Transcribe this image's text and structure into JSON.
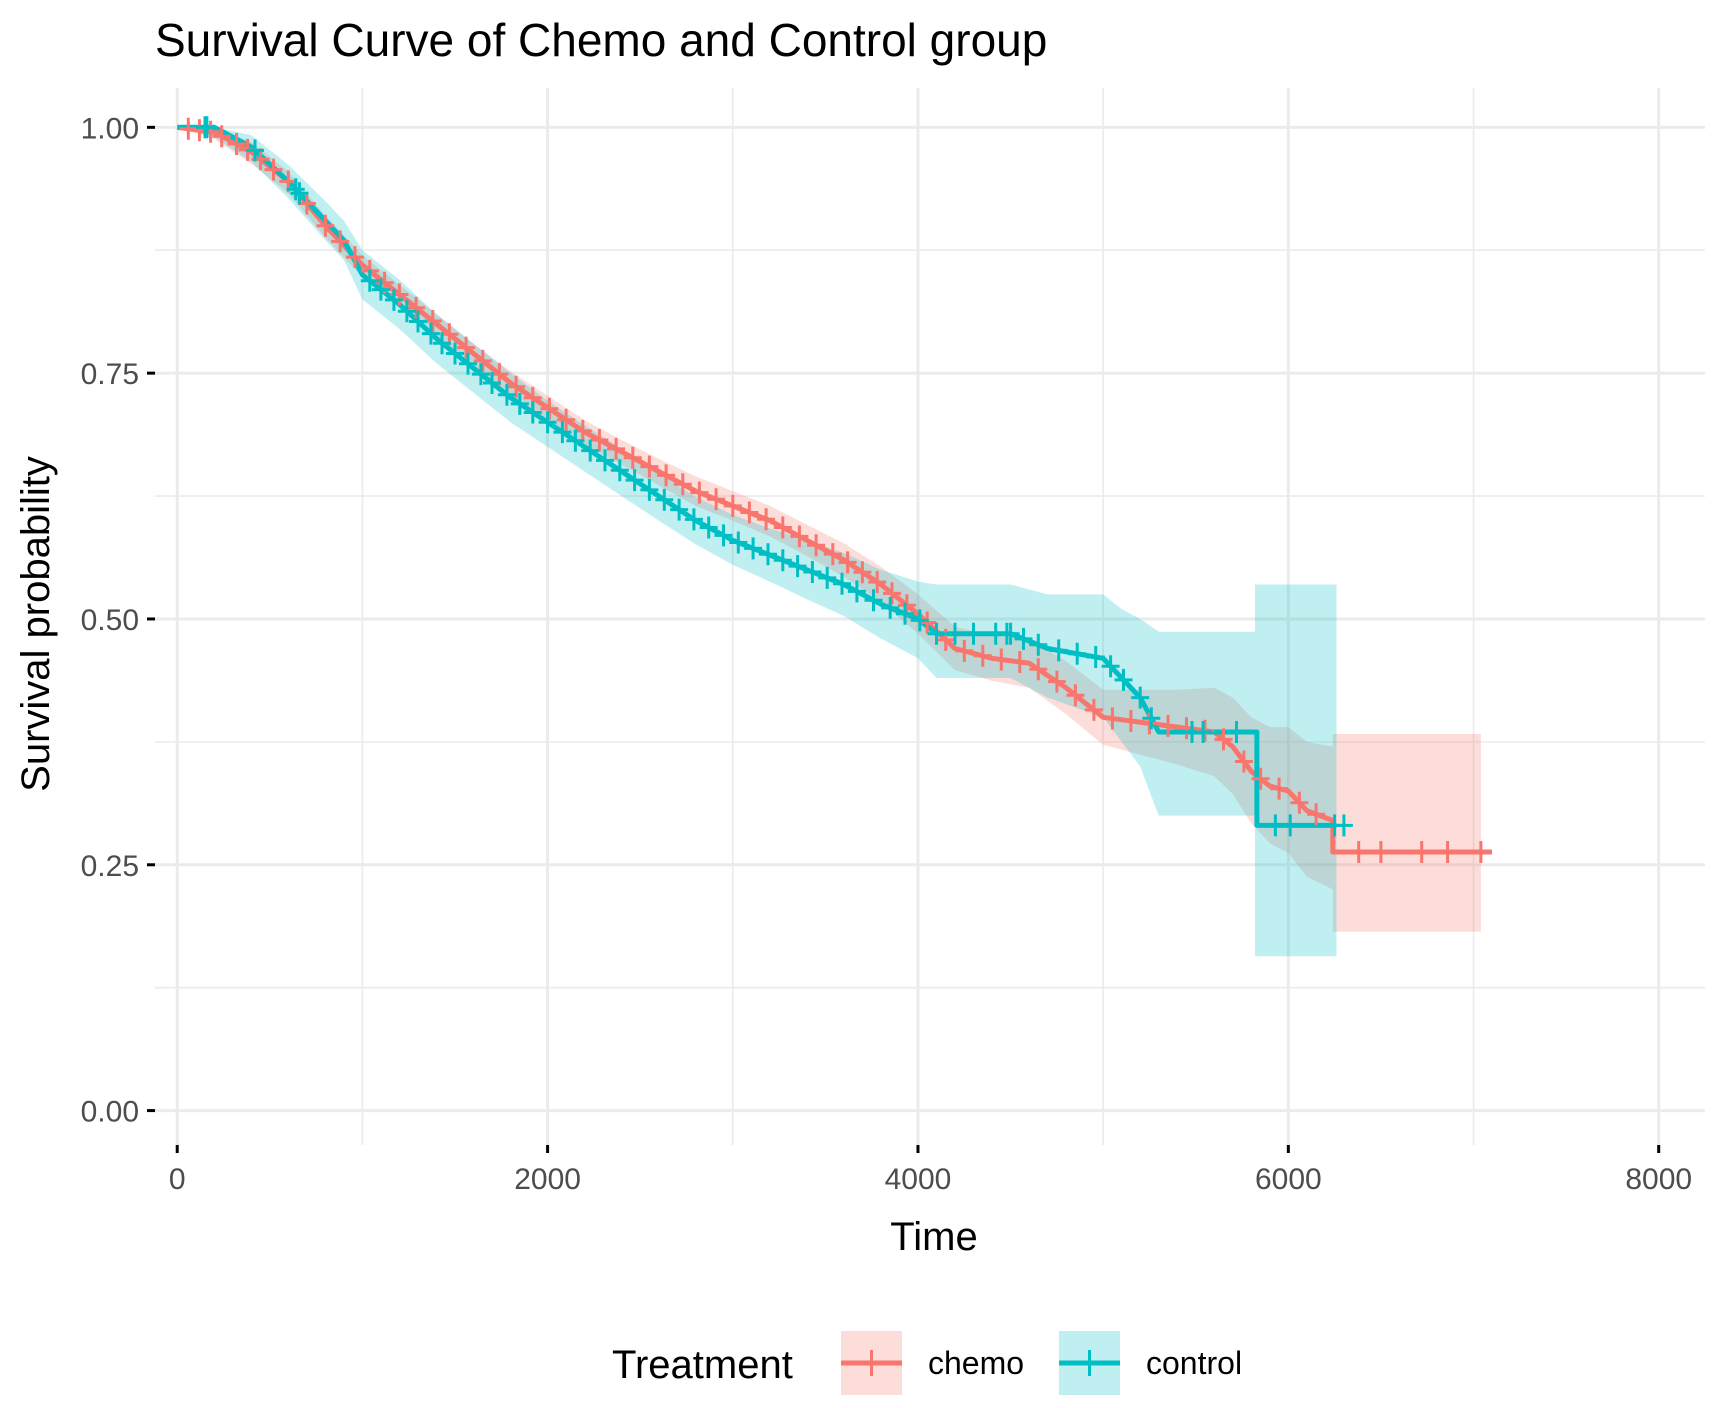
{
  "chart_data": {
    "type": "line",
    "subtype": "kaplan-meier survival curve with confidence bands",
    "title": "Survival Curve of Chemo and Control group",
    "xlabel": "Time",
    "ylabel": "Survival probability",
    "xlim": [
      -120,
      8250
    ],
    "ylim": [
      -0.035,
      1.04
    ],
    "x_ticks": [
      0,
      2000,
      4000,
      6000,
      8000
    ],
    "x_tick_labels": [
      "0",
      "2000",
      "4000",
      "6000",
      "8000"
    ],
    "y_ticks": [
      0,
      0.25,
      0.5,
      0.75,
      1.0
    ],
    "y_tick_labels": [
      "0.00",
      "0.25",
      "0.50",
      "0.75",
      "1.00"
    ],
    "grid": true,
    "legend": {
      "title": "Treatment",
      "position": "bottom"
    },
    "series": [
      {
        "name": "chemo",
        "color": "#F8766D",
        "band_color": "#F8766D",
        "points": [
          [
            0,
            1.0
          ],
          [
            200,
            0.995
          ],
          [
            400,
            0.975
          ],
          [
            600,
            0.945
          ],
          [
            800,
            0.9
          ],
          [
            1000,
            0.86
          ],
          [
            1200,
            0.83
          ],
          [
            1400,
            0.8
          ],
          [
            1600,
            0.77
          ],
          [
            1800,
            0.74
          ],
          [
            2000,
            0.715
          ],
          [
            2200,
            0.69
          ],
          [
            2400,
            0.67
          ],
          [
            2600,
            0.65
          ],
          [
            2800,
            0.63
          ],
          [
            3000,
            0.615
          ],
          [
            3200,
            0.6
          ],
          [
            3400,
            0.58
          ],
          [
            3600,
            0.56
          ],
          [
            3800,
            0.535
          ],
          [
            4000,
            0.505
          ],
          [
            4200,
            0.47
          ],
          [
            4400,
            0.46
          ],
          [
            4600,
            0.455
          ],
          [
            4800,
            0.43
          ],
          [
            5000,
            0.4
          ],
          [
            5200,
            0.395
          ],
          [
            5400,
            0.39
          ],
          [
            5600,
            0.385
          ],
          [
            5700,
            0.37
          ],
          [
            5800,
            0.345
          ],
          [
            5900,
            0.33
          ],
          [
            6000,
            0.325
          ],
          [
            6100,
            0.305
          ],
          [
            6240,
            0.295
          ],
          [
            6240,
            0.263
          ],
          [
            7100,
            0.263
          ]
        ],
        "upper": [
          [
            0,
            1.0
          ],
          [
            200,
            1.0
          ],
          [
            400,
            0.985
          ],
          [
            600,
            0.955
          ],
          [
            800,
            0.91
          ],
          [
            1000,
            0.87
          ],
          [
            1200,
            0.84
          ],
          [
            1400,
            0.81
          ],
          [
            1600,
            0.78
          ],
          [
            1800,
            0.752
          ],
          [
            2000,
            0.727
          ],
          [
            2200,
            0.702
          ],
          [
            2400,
            0.682
          ],
          [
            2600,
            0.663
          ],
          [
            2800,
            0.645
          ],
          [
            3000,
            0.63
          ],
          [
            3200,
            0.615
          ],
          [
            3400,
            0.596
          ],
          [
            3600,
            0.577
          ],
          [
            3800,
            0.553
          ],
          [
            4000,
            0.525
          ],
          [
            4200,
            0.492
          ],
          [
            4400,
            0.483
          ],
          [
            4600,
            0.48
          ],
          [
            4800,
            0.457
          ],
          [
            5000,
            0.428
          ],
          [
            5200,
            0.428
          ],
          [
            5400,
            0.428
          ],
          [
            5600,
            0.43
          ],
          [
            5700,
            0.42
          ],
          [
            5800,
            0.4
          ],
          [
            5900,
            0.39
          ],
          [
            6000,
            0.39
          ],
          [
            6100,
            0.375
          ],
          [
            6240,
            0.37
          ],
          [
            6240,
            0.383
          ],
          [
            7040,
            0.383
          ]
        ],
        "lower": [
          [
            0,
            1.0
          ],
          [
            200,
            0.988
          ],
          [
            400,
            0.963
          ],
          [
            600,
            0.933
          ],
          [
            800,
            0.888
          ],
          [
            1000,
            0.848
          ],
          [
            1200,
            0.818
          ],
          [
            1400,
            0.788
          ],
          [
            1600,
            0.758
          ],
          [
            1800,
            0.727
          ],
          [
            2000,
            0.702
          ],
          [
            2200,
            0.677
          ],
          [
            2400,
            0.657
          ],
          [
            2600,
            0.636
          ],
          [
            2800,
            0.615
          ],
          [
            3000,
            0.6
          ],
          [
            3200,
            0.584
          ],
          [
            3400,
            0.564
          ],
          [
            3600,
            0.543
          ],
          [
            3800,
            0.517
          ],
          [
            4000,
            0.485
          ],
          [
            4200,
            0.448
          ],
          [
            4400,
            0.437
          ],
          [
            4600,
            0.43
          ],
          [
            4800,
            0.403
          ],
          [
            5000,
            0.372
          ],
          [
            5200,
            0.362
          ],
          [
            5400,
            0.352
          ],
          [
            5600,
            0.34
          ],
          [
            5700,
            0.322
          ],
          [
            5800,
            0.292
          ],
          [
            5900,
            0.272
          ],
          [
            6000,
            0.262
          ],
          [
            6100,
            0.238
          ],
          [
            6240,
            0.225
          ],
          [
            6240,
            0.182
          ],
          [
            7040,
            0.182
          ]
        ],
        "censor_times": [
          60,
          120,
          180,
          240,
          320,
          380,
          450,
          520,
          600,
          700,
          800,
          880,
          960,
          1040,
          1120,
          1200,
          1290,
          1380,
          1470,
          1560,
          1650,
          1740,
          1830,
          1920,
          2010,
          2100,
          2190,
          2280,
          2370,
          2460,
          2550,
          2640,
          2730,
          2820,
          2910,
          3000,
          3090,
          3180,
          3270,
          3360,
          3450,
          3540,
          3620,
          3700,
          3780,
          3860,
          3940,
          4050,
          4150,
          4250,
          4350,
          4450,
          4550,
          4650,
          4750,
          4850,
          4950,
          5050,
          5150,
          5250,
          5350,
          5450,
          5550,
          5650,
          5760,
          5850,
          5950,
          6060,
          6150,
          6380,
          6500,
          6720,
          6860,
          7040
        ]
      },
      {
        "name": "control",
        "color": "#00BFC4",
        "band_color": "#00BFC4",
        "points": [
          [
            0,
            1.0
          ],
          [
            200,
            1.0
          ],
          [
            400,
            0.98
          ],
          [
            600,
            0.945
          ],
          [
            800,
            0.905
          ],
          [
            900,
            0.885
          ],
          [
            1000,
            0.85
          ],
          [
            1200,
            0.82
          ],
          [
            1400,
            0.785
          ],
          [
            1600,
            0.755
          ],
          [
            1800,
            0.725
          ],
          [
            2000,
            0.7
          ],
          [
            2200,
            0.675
          ],
          [
            2400,
            0.65
          ],
          [
            2600,
            0.625
          ],
          [
            2800,
            0.6
          ],
          [
            3000,
            0.58
          ],
          [
            3200,
            0.565
          ],
          [
            3400,
            0.55
          ],
          [
            3600,
            0.535
          ],
          [
            3800,
            0.515
          ],
          [
            4000,
            0.5
          ],
          [
            4100,
            0.485
          ],
          [
            4500,
            0.485
          ],
          [
            4700,
            0.47
          ],
          [
            5000,
            0.46
          ],
          [
            5100,
            0.44
          ],
          [
            5200,
            0.42
          ],
          [
            5300,
            0.385
          ],
          [
            5830,
            0.385
          ],
          [
            5830,
            0.29
          ],
          [
            6260,
            0.29
          ]
        ],
        "upper": [
          [
            0,
            1.0
          ],
          [
            200,
            1.0
          ],
          [
            400,
            0.992
          ],
          [
            600,
            0.962
          ],
          [
            800,
            0.925
          ],
          [
            900,
            0.905
          ],
          [
            1000,
            0.875
          ],
          [
            1200,
            0.845
          ],
          [
            1400,
            0.81
          ],
          [
            1600,
            0.78
          ],
          [
            1800,
            0.75
          ],
          [
            2000,
            0.722
          ],
          [
            2200,
            0.697
          ],
          [
            2400,
            0.673
          ],
          [
            2600,
            0.648
          ],
          [
            2800,
            0.624
          ],
          [
            3000,
            0.606
          ],
          [
            3200,
            0.592
          ],
          [
            3400,
            0.58
          ],
          [
            3600,
            0.567
          ],
          [
            3800,
            0.55
          ],
          [
            4000,
            0.538
          ],
          [
            4100,
            0.535
          ],
          [
            4500,
            0.535
          ],
          [
            4700,
            0.525
          ],
          [
            5000,
            0.525
          ],
          [
            5100,
            0.51
          ],
          [
            5200,
            0.5
          ],
          [
            5300,
            0.487
          ],
          [
            5820,
            0.487
          ],
          [
            5820,
            0.535
          ],
          [
            6260,
            0.535
          ]
        ],
        "lower": [
          [
            0,
            1.0
          ],
          [
            200,
            0.99
          ],
          [
            400,
            0.965
          ],
          [
            600,
            0.928
          ],
          [
            800,
            0.885
          ],
          [
            900,
            0.865
          ],
          [
            1000,
            0.825
          ],
          [
            1200,
            0.795
          ],
          [
            1400,
            0.76
          ],
          [
            1600,
            0.73
          ],
          [
            1800,
            0.7
          ],
          [
            2000,
            0.675
          ],
          [
            2200,
            0.65
          ],
          [
            2400,
            0.625
          ],
          [
            2600,
            0.6
          ],
          [
            2800,
            0.576
          ],
          [
            3000,
            0.555
          ],
          [
            3200,
            0.538
          ],
          [
            3400,
            0.52
          ],
          [
            3600,
            0.503
          ],
          [
            3800,
            0.48
          ],
          [
            4000,
            0.46
          ],
          [
            4100,
            0.44
          ],
          [
            4500,
            0.44
          ],
          [
            4700,
            0.42
          ],
          [
            5000,
            0.4
          ],
          [
            5100,
            0.375
          ],
          [
            5200,
            0.35
          ],
          [
            5300,
            0.3
          ],
          [
            5820,
            0.3
          ],
          [
            5820,
            0.157
          ],
          [
            6260,
            0.157
          ]
        ],
        "censor_times": [
          150,
          160,
          420,
          640,
          660,
          1040,
          1100,
          1170,
          1240,
          1300,
          1370,
          1430,
          1500,
          1570,
          1640,
          1700,
          1780,
          1850,
          1920,
          2000,
          2080,
          2150,
          2230,
          2310,
          2390,
          2470,
          2550,
          2630,
          2710,
          2790,
          2870,
          2950,
          3030,
          3110,
          3190,
          3270,
          3350,
          3430,
          3510,
          3590,
          3670,
          3760,
          3850,
          3930,
          4010,
          4100,
          4200,
          4300,
          4420,
          4480,
          4500,
          4570,
          4650,
          4760,
          4860,
          4960,
          5040,
          5110,
          5200,
          5260,
          5480,
          5540,
          5720,
          5930,
          6010,
          6250,
          6300
        ]
      }
    ]
  }
}
